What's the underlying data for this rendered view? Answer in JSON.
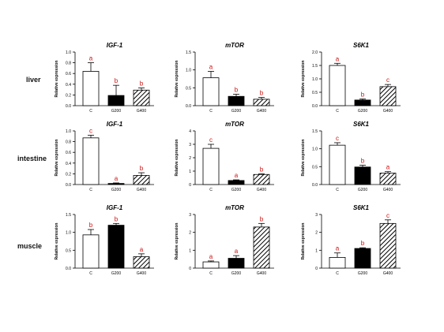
{
  "rows": [
    {
      "tissue": "liver"
    },
    {
      "tissue": "intestine"
    },
    {
      "tissue": "muscle"
    }
  ],
  "colors": {
    "letter": "#cc1111",
    "bar_edge": "#000000",
    "G200": "#000000",
    "C": "#ffffff"
  },
  "chart_data": [
    {
      "type": "bar",
      "row": "liver",
      "title": "IGF-1",
      "ylabel": "Relative expression",
      "categories": [
        "C",
        "G200",
        "G400"
      ],
      "values": [
        0.64,
        0.19,
        0.29
      ],
      "errors": [
        0.16,
        0.19,
        0.04
      ],
      "letters": [
        "a",
        "b",
        "b"
      ],
      "ylim": [
        0,
        1.0
      ],
      "yticks": [
        "0.0",
        "0.2",
        "0.4",
        "0.6",
        "0.8",
        "1.0"
      ],
      "fills": [
        "white",
        "black",
        "hatch"
      ]
    },
    {
      "type": "bar",
      "row": "liver",
      "title": "mTOR",
      "ylabel": "Relative expression",
      "categories": [
        "C",
        "G200",
        "G400"
      ],
      "values": [
        0.78,
        0.26,
        0.18
      ],
      "errors": [
        0.18,
        0.06,
        0.05
      ],
      "letters": [
        "a",
        "b",
        "b"
      ],
      "ylim": [
        0,
        1.5
      ],
      "yticks": [
        "0.0",
        "0.5",
        "1.0",
        "1.5"
      ],
      "fills": [
        "white",
        "black",
        "hatch"
      ]
    },
    {
      "type": "bar",
      "row": "liver",
      "title": "S6K1",
      "ylabel": "Relative expression",
      "categories": [
        "C",
        "G200",
        "G400"
      ],
      "values": [
        1.5,
        0.21,
        0.71
      ],
      "errors": [
        0.08,
        0.04,
        0.08
      ],
      "letters": [
        "a",
        "b",
        "c"
      ],
      "ylim": [
        0,
        2.0
      ],
      "yticks": [
        "0.0",
        "0.5",
        "1.0",
        "1.5",
        "2.0"
      ],
      "fills": [
        "white",
        "black",
        "hatch"
      ]
    },
    {
      "type": "bar",
      "row": "intestine",
      "title": "IGF-1",
      "ylabel": "Relative expression",
      "categories": [
        "C",
        "G200",
        "G400"
      ],
      "values": [
        0.87,
        0.02,
        0.17
      ],
      "errors": [
        0.05,
        0.01,
        0.05
      ],
      "letters": [
        "c",
        "a",
        "b"
      ],
      "ylim": [
        0,
        1.0
      ],
      "yticks": [
        "0.0",
        "0.2",
        "0.4",
        "0.6",
        "0.8",
        "1.0"
      ],
      "fills": [
        "white",
        "black",
        "hatch"
      ]
    },
    {
      "type": "bar",
      "row": "intestine",
      "title": "mTOR",
      "ylabel": "Relative expression",
      "categories": [
        "C",
        "G200",
        "G400"
      ],
      "values": [
        2.7,
        0.3,
        0.75
      ],
      "errors": [
        0.3,
        0.05,
        0.05
      ],
      "letters": [
        "c",
        "a",
        "b"
      ],
      "ylim": [
        0,
        4
      ],
      "yticks": [
        "0",
        "1",
        "2",
        "3",
        "4"
      ],
      "fills": [
        "white",
        "black",
        "hatch"
      ]
    },
    {
      "type": "bar",
      "row": "intestine",
      "title": "S6K1",
      "ylabel": "Relative expression",
      "categories": [
        "C",
        "G200",
        "G400"
      ],
      "values": [
        1.1,
        0.49,
        0.32
      ],
      "errors": [
        0.07,
        0.05,
        0.04
      ],
      "letters": [
        "c",
        "b",
        "a"
      ],
      "ylim": [
        0,
        1.5
      ],
      "yticks": [
        "0.0",
        "0.5",
        "1.0",
        "1.5"
      ],
      "fills": [
        "white",
        "black",
        "hatch"
      ]
    },
    {
      "type": "bar",
      "row": "muscle",
      "title": "IGF-1",
      "ylabel": "Relative expression",
      "categories": [
        "C",
        "G200",
        "G400"
      ],
      "values": [
        0.93,
        1.2,
        0.32
      ],
      "errors": [
        0.15,
        0.05,
        0.08
      ],
      "letters": [
        "b",
        "b",
        "a"
      ],
      "ylim": [
        0,
        1.5
      ],
      "yticks": [
        "0.0",
        "0.5",
        "1.0",
        "1.5"
      ],
      "fills": [
        "white",
        "black",
        "hatch"
      ]
    },
    {
      "type": "bar",
      "row": "muscle",
      "title": "mTOR",
      "ylabel": "Relative expression",
      "categories": [
        "C",
        "G200",
        "G400"
      ],
      "values": [
        0.35,
        0.55,
        2.3
      ],
      "errors": [
        0.05,
        0.15,
        0.2
      ],
      "letters": [
        "a",
        "a",
        "b"
      ],
      "ylim": [
        0,
        3
      ],
      "yticks": [
        "0",
        "1",
        "2",
        "3"
      ],
      "fills": [
        "white",
        "black",
        "hatch"
      ]
    },
    {
      "type": "bar",
      "row": "muscle",
      "title": "S6K1",
      "ylabel": "Relative expression",
      "categories": [
        "C",
        "G200",
        "G400"
      ],
      "values": [
        0.6,
        1.1,
        2.5
      ],
      "errors": [
        0.25,
        0.04,
        0.2
      ],
      "letters": [
        "a",
        "b",
        "c"
      ],
      "ylim": [
        0,
        3
      ],
      "yticks": [
        "0",
        "1",
        "2",
        "3"
      ],
      "fills": [
        "white",
        "black",
        "hatch"
      ]
    }
  ]
}
